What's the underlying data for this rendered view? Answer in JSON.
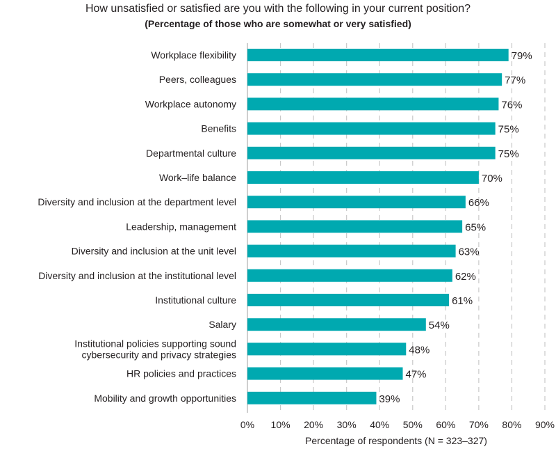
{
  "chart_data": {
    "type": "bar",
    "orientation": "horizontal",
    "title": "How unsatisfied or satisfied are you with the following in your current position?",
    "subtitle": "(Percentage of those who are somewhat or very satisfied)",
    "xlabel": "Percentage of respondents (N = 323–327)",
    "ylabel": "",
    "xlim": [
      0,
      90
    ],
    "ticks": [
      0,
      10,
      20,
      30,
      40,
      50,
      60,
      70,
      80,
      90
    ],
    "tick_labels": [
      "0%",
      "10%",
      "20%",
      "30%",
      "40%",
      "50%",
      "60%",
      "70%",
      "80%",
      "90%"
    ],
    "grid": "vertical dashed",
    "bar_color": "#00a9b0",
    "grid_color": "#c8c8c8",
    "categories": [
      [
        "Workplace flexibility"
      ],
      [
        "Peers, colleagues"
      ],
      [
        "Workplace autonomy"
      ],
      [
        "Benefits"
      ],
      [
        "Departmental culture"
      ],
      [
        "Work–life balance"
      ],
      [
        "Diversity and inclusion at the department level"
      ],
      [
        "Leadership, management"
      ],
      [
        "Diversity and inclusion at the unit level"
      ],
      [
        "Diversity and inclusion at the institutional level"
      ],
      [
        "Institutional culture"
      ],
      [
        "Salary"
      ],
      [
        "Institutional policies supporting sound",
        "cybersecurity and privacy strategies"
      ],
      [
        "HR policies and practices"
      ],
      [
        "Mobility and growth opportunities"
      ]
    ],
    "values": [
      79,
      77,
      76,
      75,
      75,
      70,
      66,
      65,
      63,
      62,
      61,
      54,
      48,
      47,
      39
    ],
    "value_labels": [
      "79%",
      "77%",
      "76%",
      "75%",
      "75%",
      "70%",
      "66%",
      "65%",
      "63%",
      "62%",
      "61%",
      "54%",
      "48%",
      "47%",
      "39%"
    ]
  }
}
